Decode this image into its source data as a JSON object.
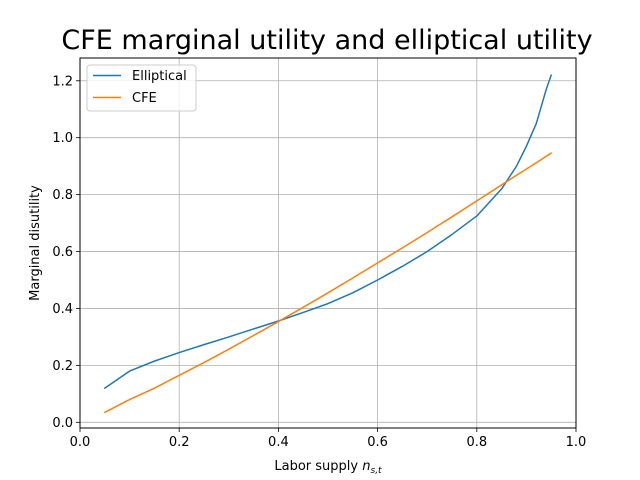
{
  "chart_data": {
    "type": "line",
    "title": "CFE marginal utility and elliptical utility",
    "xlabel": "Labor supply",
    "xlabel_math": "n",
    "xlabel_sub": "s,t",
    "ylabel": "Marginal disutility",
    "xlim": [
      0.0,
      1.0
    ],
    "ylim": [
      -0.02,
      1.28
    ],
    "xticks": [
      0.0,
      0.2,
      0.4,
      0.6,
      0.8,
      1.0
    ],
    "xtick_labels": [
      "0.0",
      "0.2",
      "0.4",
      "0.6",
      "0.8",
      "1.0"
    ],
    "yticks": [
      0.0,
      0.2,
      0.4,
      0.6,
      0.8,
      1.0,
      1.2
    ],
    "ytick_labels": [
      "0.0",
      "0.2",
      "0.4",
      "0.6",
      "0.8",
      "1.0",
      "1.2"
    ],
    "grid": true,
    "legend_position": "top-left",
    "x": [
      0.05,
      0.1,
      0.15,
      0.2,
      0.25,
      0.3,
      0.35,
      0.4,
      0.45,
      0.5,
      0.55,
      0.6,
      0.65,
      0.7,
      0.75,
      0.8,
      0.85,
      0.88,
      0.9,
      0.92,
      0.94,
      0.95
    ],
    "series": [
      {
        "name": "Elliptical",
        "color": "#1f77b4",
        "values": [
          0.12,
          0.18,
          0.215,
          0.245,
          0.273,
          0.3,
          0.328,
          0.356,
          0.386,
          0.417,
          0.455,
          0.5,
          0.548,
          0.6,
          0.66,
          0.725,
          0.82,
          0.9,
          0.97,
          1.05,
          1.17,
          1.22
        ]
      },
      {
        "name": "CFE",
        "color": "#ff7f0e",
        "values": [
          0.035,
          0.08,
          0.12,
          0.165,
          0.21,
          0.257,
          0.305,
          0.354,
          0.404,
          0.455,
          0.507,
          0.56,
          0.613,
          0.667,
          0.722,
          0.778,
          0.834,
          0.868,
          0.89,
          0.912,
          0.935,
          0.946
        ]
      }
    ]
  }
}
